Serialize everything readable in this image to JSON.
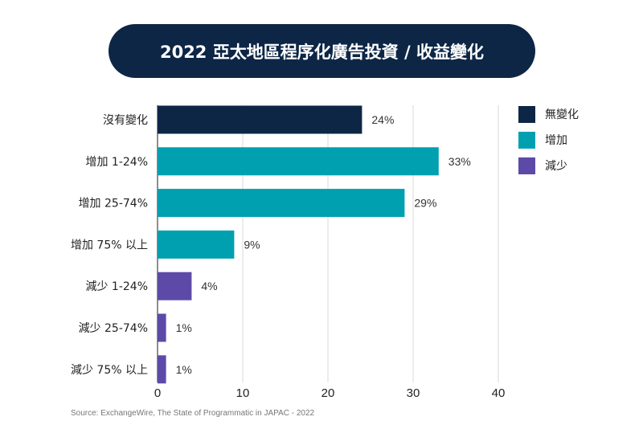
{
  "title": "2022 亞太地區程序化廣告投資 / 收益變化",
  "source": "Source: ExchangeWire, The State of Programmatic in JAPAC - 2022",
  "legend": [
    {
      "label": "無變化",
      "color": "#0d2646"
    },
    {
      "label": "增加",
      "color": "#00a0b0"
    },
    {
      "label": "減少",
      "color": "#5d4aa8"
    }
  ],
  "chart_data": {
    "type": "bar",
    "orientation": "horizontal",
    "categories": [
      "沒有變化",
      "增加 1-24%",
      "增加 25-74%",
      "增加 75% 以上",
      "減少 1-24%",
      "減少 25-74%",
      "減少 75% 以上"
    ],
    "values": [
      24,
      33,
      29,
      9,
      4,
      1,
      1
    ],
    "value_labels": [
      "24%",
      "33%",
      "29%",
      "9%",
      "4%",
      "1%",
      "1%"
    ],
    "groups": [
      "無變化",
      "增加",
      "增加",
      "增加",
      "減少",
      "減少",
      "減少"
    ],
    "xlim": [
      0,
      40
    ],
    "xticks": [
      0,
      10,
      20,
      30,
      40
    ],
    "grid": true,
    "legend_position": "right"
  }
}
